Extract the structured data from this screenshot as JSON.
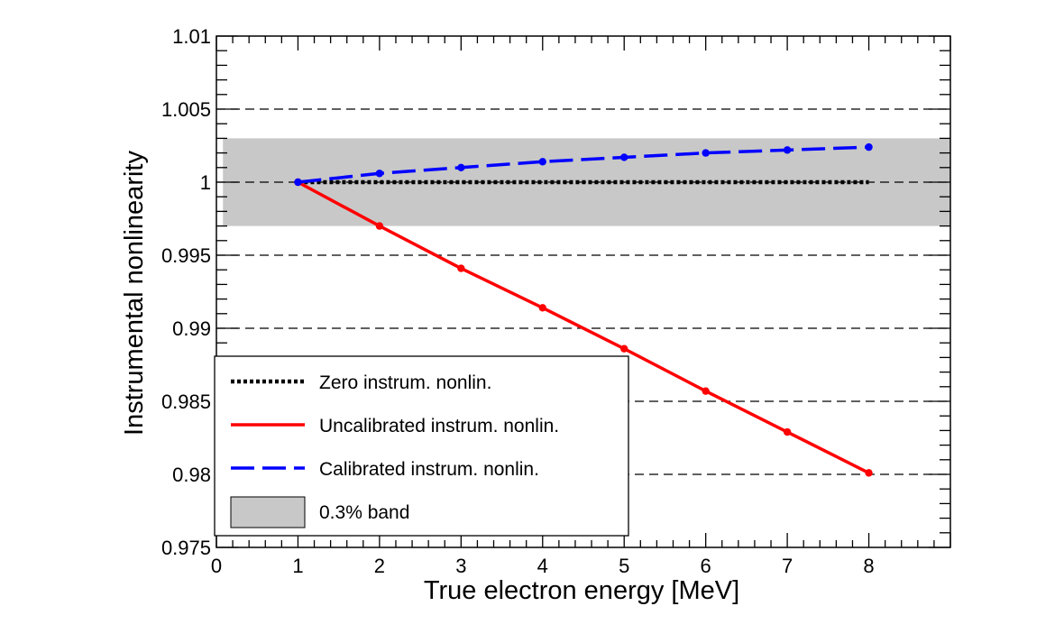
{
  "chart_data": {
    "type": "line",
    "title": "",
    "xlabel": "True electron energy [MeV]",
    "ylabel": "Instrumental nonlinearity",
    "xlim": [
      0,
      9
    ],
    "ylim": [
      0.975,
      1.01
    ],
    "x_ticks": [
      0,
      1,
      2,
      3,
      4,
      5,
      6,
      7,
      8
    ],
    "x_tick_labels": [
      "0",
      "1",
      "2",
      "3",
      "4",
      "5",
      "6",
      "7",
      "8"
    ],
    "y_ticks": [
      0.975,
      0.98,
      0.985,
      0.99,
      0.995,
      1,
      1.005,
      1.01
    ],
    "y_tick_labels": [
      "0.975",
      "0.98",
      "0.985",
      "0.99",
      "0.995",
      "1",
      "1.005",
      "1.01"
    ],
    "grid": "horizontal dashed",
    "legend_position": "bottom-left",
    "band": {
      "name": "0.3% band",
      "x": [
        0.08,
        9
      ],
      "y": [
        0.997,
        1.003
      ],
      "color": "#c8c8c8"
    },
    "series": [
      {
        "name": "Zero instrum. nonlin.",
        "style": "dotted",
        "color": "#000000",
        "markers": false,
        "x": [
          1,
          8
        ],
        "y": [
          1.0,
          1.0
        ]
      },
      {
        "name": "Uncalibrated instrum. nonlin.",
        "style": "solid",
        "color": "#ff0000",
        "markers": true,
        "x": [
          1,
          2,
          3,
          4,
          5,
          6,
          7,
          8
        ],
        "y": [
          1.0,
          0.997,
          0.9941,
          0.9914,
          0.9886,
          0.9857,
          0.9829,
          0.9801
        ]
      },
      {
        "name": "Calibrated instrum. nonlin.",
        "style": "dashed",
        "color": "#0000ff",
        "markers": true,
        "x": [
          1,
          2,
          3,
          4,
          5,
          6,
          7,
          8
        ],
        "y": [
          1.0,
          1.0006,
          1.001,
          1.0014,
          1.0017,
          1.002,
          1.0022,
          1.0024
        ]
      }
    ]
  }
}
